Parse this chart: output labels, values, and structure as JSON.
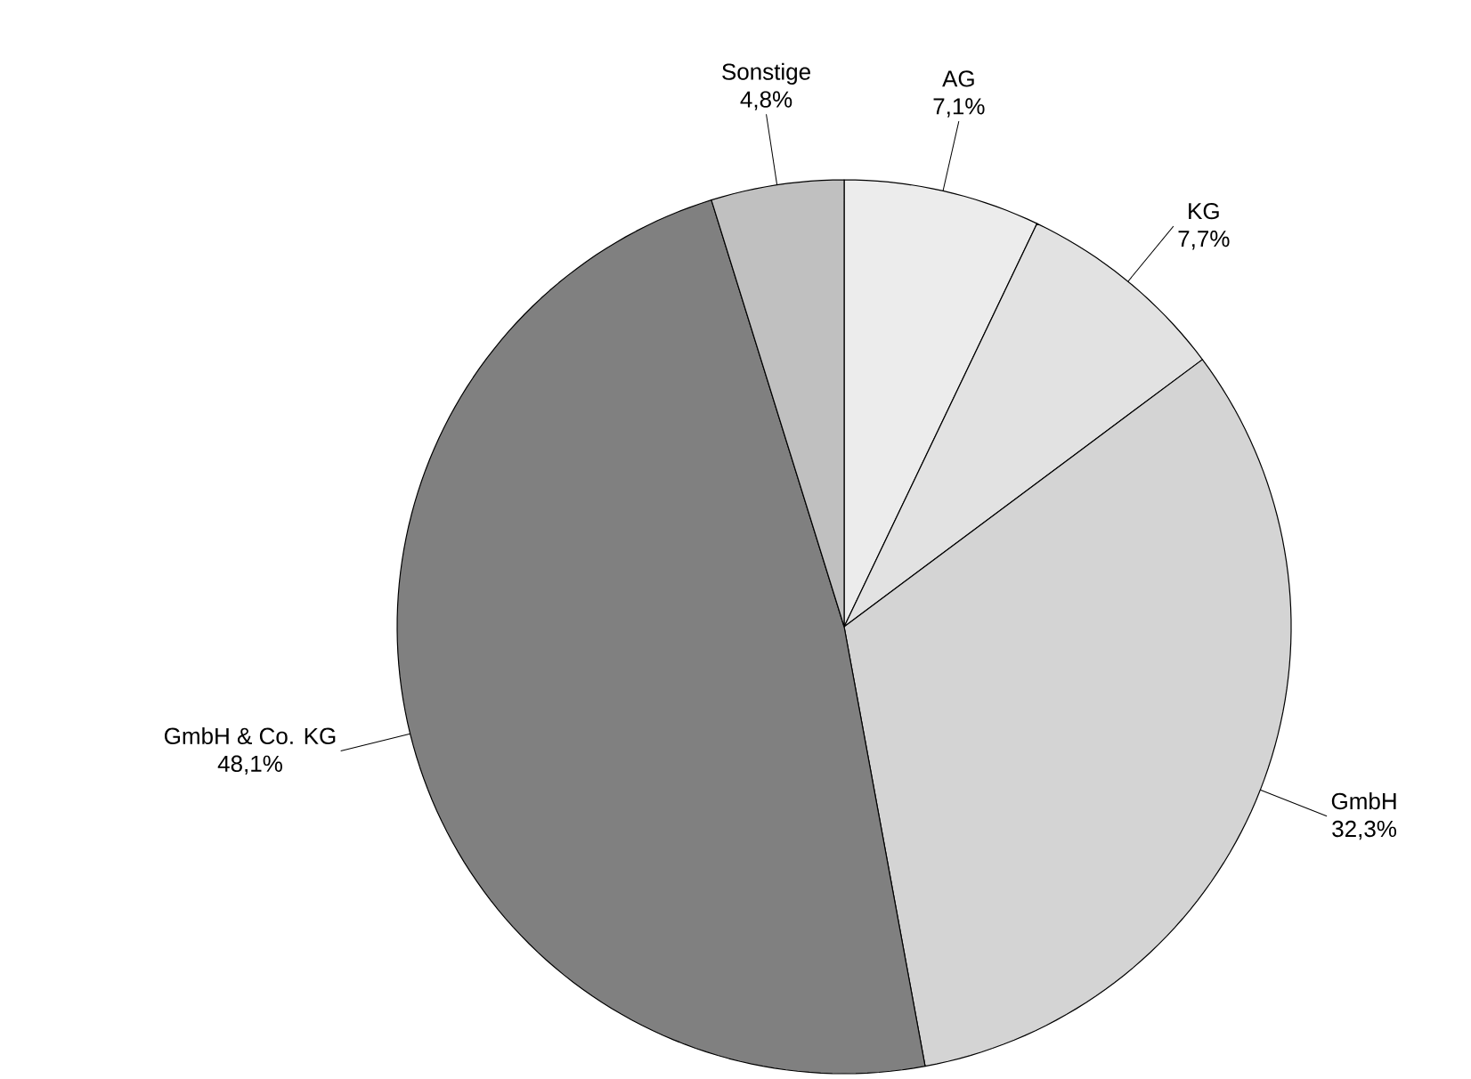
{
  "chart_data": {
    "type": "pie",
    "categories": [
      "AG",
      "KG",
      "GmbH",
      "GmbH & Co. KG",
      "Sonstige"
    ],
    "values": [
      7.1,
      7.7,
      32.3,
      48.1,
      4.8
    ],
    "colors": [
      "#ececec",
      "#e2e2e2",
      "#d4d4d4",
      "#808080",
      "#c0c0c0"
    ],
    "value_labels": [
      "7,1%",
      "7,7%",
      "32,3%",
      "48,1%",
      "4,8%"
    ]
  }
}
